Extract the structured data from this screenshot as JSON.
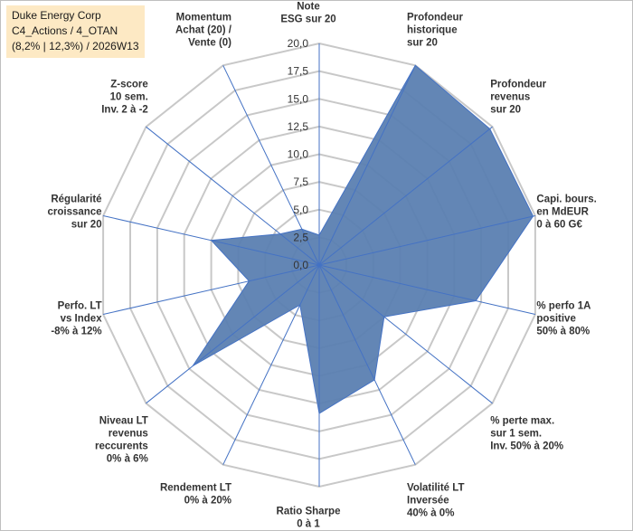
{
  "chart_data": {
    "type": "radar",
    "title_lines": [
      "Duke Energy Corp",
      "C4_Actions / 4_OTAN",
      "(8,2% | 12,3%) / 2026W13"
    ],
    "rmax": 20,
    "tick_values": [
      0,
      2.5,
      5,
      7.5,
      10,
      12.5,
      15,
      17.5,
      20
    ],
    "tick_labels": [
      "0,0",
      "2,5",
      "5,0",
      "7,5",
      "10,0",
      "12,5",
      "15,0",
      "17,5",
      "20,0"
    ],
    "axes": [
      {
        "label_lines": [
          "Note",
          "ESG sur 20"
        ],
        "value": 2.7
      },
      {
        "label_lines": [
          "Profondeur",
          "historique",
          "sur 20"
        ],
        "value": 20
      },
      {
        "label_lines": [
          "Profondeur",
          "revenus",
          "sur 20"
        ],
        "value": 19.7
      },
      {
        "label_lines": [
          "Capi. bours.",
          "en MdEUR",
          "0 à 60 G€"
        ],
        "value": 19.8
      },
      {
        "label_lines": [
          "% perfo 1A",
          "positive",
          "50% à 80%"
        ],
        "value": 14.5
      },
      {
        "label_lines": [
          "% perte max.",
          "sur 1 sem.",
          "Inv. 50% à 20%"
        ],
        "value": 7.5
      },
      {
        "label_lines": [
          "Volatilité LT",
          "Inversée",
          "40% à 0%"
        ],
        "value": 11.5
      },
      {
        "label_lines": [
          "Ratio Sharpe",
          "0 à 1"
        ],
        "value": 13.4
      },
      {
        "label_lines": [
          "Rendement LT",
          "0% à 20%"
        ],
        "value": 4
      },
      {
        "label_lines": [
          "Niveau LT",
          "revenus",
          "reccurents",
          "0% à 6%"
        ],
        "value": 14.6
      },
      {
        "label_lines": [
          "Perfo. LT",
          "vs Index",
          "-8% à 12%"
        ],
        "value": 6.5
      },
      {
        "label_lines": [
          "Régularité",
          "croissance",
          "sur 20"
        ],
        "value": 10
      },
      {
        "label_lines": [
          "Z-score",
          "10 sem.",
          "Inv. 2 à -2"
        ],
        "value": 4.5
      },
      {
        "label_lines": [
          "Momentum",
          "Achat (20) /",
          "Vente (0)"
        ],
        "value": 3.6
      }
    ],
    "fill_color": "#5b7fb1",
    "line_color": "#4472c4",
    "grid_color": "#c8c8c8"
  }
}
